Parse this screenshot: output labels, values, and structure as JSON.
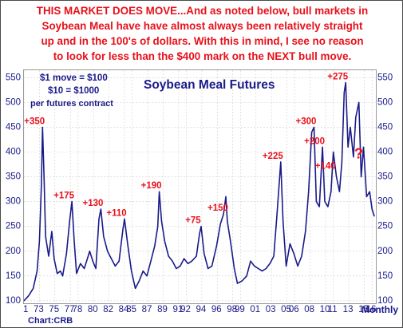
{
  "headline": {
    "line1": "THIS MARKET DOES MOVE...And as noted below, bull markets in",
    "line2": "Soybean Meal have have almost always been relatively straight",
    "line3": "up and in the 100's of dollars. With this in mind, I see no reason",
    "line4": "to look for less than the $400 mark on the NEXT bull move."
  },
  "legend_box": {
    "line1": "$1 move = $100",
    "line2": "$10 = $1000",
    "line3": "per futures contract"
  },
  "credit": "Chart:CRB",
  "x_unit": "Monthly",
  "colors": {
    "headline": "#e8101a",
    "series": "#1a1a8a",
    "annotation": "#e8101a",
    "axis_text": "#1a1a8a"
  },
  "chart_data": {
    "type": "line",
    "title": "Soybean Meal Futures",
    "xlabel": "Monthly",
    "ylabel": "",
    "xlim": [
      1971.0,
      2016.5
    ],
    "ylim": [
      95,
      565
    ],
    "y_ticks": [
      100,
      150,
      200,
      250,
      300,
      350,
      400,
      450,
      500,
      550
    ],
    "x_ticks": [
      {
        "label": "71",
        "x": 1971
      },
      {
        "label": "73",
        "x": 1973
      },
      {
        "label": "75",
        "x": 1975
      },
      {
        "label": "77",
        "x": 1977
      },
      {
        "label": "78",
        "x": 1978
      },
      {
        "label": "80",
        "x": 1980
      },
      {
        "label": "82",
        "x": 1982
      },
      {
        "label": "84",
        "x": 1984
      },
      {
        "label": "85",
        "x": 1985
      },
      {
        "label": "87",
        "x": 1987
      },
      {
        "label": "89",
        "x": 1989
      },
      {
        "label": "91",
        "x": 1991
      },
      {
        "label": "92",
        "x": 1992
      },
      {
        "label": "94",
        "x": 1994
      },
      {
        "label": "96",
        "x": 1996
      },
      {
        "label": "98",
        "x": 1998
      },
      {
        "label": "99",
        "x": 1999
      },
      {
        "label": "01",
        "x": 2001
      },
      {
        "label": "03",
        "x": 2003
      },
      {
        "label": "05",
        "x": 2005
      },
      {
        "label": "06",
        "x": 2006
      },
      {
        "label": "08",
        "x": 2008
      },
      {
        "label": "10",
        "x": 2010
      },
      {
        "label": "11",
        "x": 2011
      },
      {
        "label": "13",
        "x": 2013
      },
      {
        "label": "15",
        "x": 2015
      },
      {
        "label": "16",
        "x": 2016
      }
    ],
    "grid": true,
    "series": [
      {
        "values": [
          [
            1971.0,
            100
          ],
          [
            1971.6,
            110
          ],
          [
            1972.2,
            125
          ],
          [
            1972.7,
            160
          ],
          [
            1973.0,
            220
          ],
          [
            1973.25,
            330
          ],
          [
            1973.4,
            450
          ],
          [
            1973.6,
            350
          ],
          [
            1973.8,
            230
          ],
          [
            1974.2,
            190
          ],
          [
            1974.6,
            240
          ],
          [
            1974.9,
            185
          ],
          [
            1975.3,
            155
          ],
          [
            1975.7,
            160
          ],
          [
            1976.0,
            150
          ],
          [
            1976.5,
            195
          ],
          [
            1976.9,
            260
          ],
          [
            1977.2,
            300
          ],
          [
            1977.5,
            220
          ],
          [
            1977.8,
            155
          ],
          [
            1978.3,
            175
          ],
          [
            1978.8,
            165
          ],
          [
            1979.2,
            185
          ],
          [
            1979.5,
            200
          ],
          [
            1979.9,
            180
          ],
          [
            1980.3,
            165
          ],
          [
            1980.7,
            265
          ],
          [
            1980.95,
            285
          ],
          [
            1981.3,
            230
          ],
          [
            1981.8,
            200
          ],
          [
            1982.3,
            185
          ],
          [
            1982.8,
            170
          ],
          [
            1983.3,
            180
          ],
          [
            1983.8,
            245
          ],
          [
            1984.0,
            265
          ],
          [
            1984.4,
            215
          ],
          [
            1984.9,
            160
          ],
          [
            1985.4,
            125
          ],
          [
            1985.9,
            140
          ],
          [
            1986.4,
            160
          ],
          [
            1986.9,
            150
          ],
          [
            1987.4,
            180
          ],
          [
            1987.9,
            210
          ],
          [
            1988.3,
            250
          ],
          [
            1988.5,
            320
          ],
          [
            1988.8,
            260
          ],
          [
            1989.2,
            220
          ],
          [
            1989.7,
            190
          ],
          [
            1990.2,
            180
          ],
          [
            1990.7,
            165
          ],
          [
            1991.2,
            170
          ],
          [
            1991.7,
            185
          ],
          [
            1992.2,
            175
          ],
          [
            1992.7,
            180
          ],
          [
            1993.3,
            190
          ],
          [
            1993.7,
            235
          ],
          [
            1993.9,
            250
          ],
          [
            1994.3,
            195
          ],
          [
            1994.8,
            165
          ],
          [
            1995.3,
            170
          ],
          [
            1995.9,
            210
          ],
          [
            1996.4,
            255
          ],
          [
            1996.8,
            275
          ],
          [
            1997.1,
            310
          ],
          [
            1997.3,
            260
          ],
          [
            1997.7,
            220
          ],
          [
            1998.2,
            165
          ],
          [
            1998.6,
            135
          ],
          [
            1999.2,
            140
          ],
          [
            1999.8,
            150
          ],
          [
            2000.3,
            180
          ],
          [
            2000.8,
            170
          ],
          [
            2001.3,
            165
          ],
          [
            2001.8,
            160
          ],
          [
            2002.3,
            165
          ],
          [
            2002.8,
            175
          ],
          [
            2003.3,
            190
          ],
          [
            2003.7,
            270
          ],
          [
            2004.0,
            335
          ],
          [
            2004.2,
            380
          ],
          [
            2004.5,
            260
          ],
          [
            2004.9,
            170
          ],
          [
            2005.4,
            215
          ],
          [
            2005.9,
            195
          ],
          [
            2006.4,
            170
          ],
          [
            2006.9,
            190
          ],
          [
            2007.4,
            240
          ],
          [
            2007.8,
            320
          ],
          [
            2008.2,
            440
          ],
          [
            2008.5,
            450
          ],
          [
            2008.8,
            300
          ],
          [
            2009.2,
            290
          ],
          [
            2009.6,
            410
          ],
          [
            2009.9,
            300
          ],
          [
            2010.3,
            290
          ],
          [
            2010.7,
            320
          ],
          [
            2011.0,
            400
          ],
          [
            2011.4,
            350
          ],
          [
            2011.8,
            320
          ],
          [
            2012.1,
            380
          ],
          [
            2012.4,
            520
          ],
          [
            2012.6,
            540
          ],
          [
            2012.9,
            410
          ],
          [
            2013.2,
            450
          ],
          [
            2013.6,
            390
          ],
          [
            2013.9,
            470
          ],
          [
            2014.3,
            500
          ],
          [
            2014.6,
            350
          ],
          [
            2014.9,
            410
          ],
          [
            2015.3,
            310
          ],
          [
            2015.7,
            320
          ],
          [
            2016.0,
            285
          ],
          [
            2016.3,
            270
          ]
        ]
      }
    ],
    "annotations": [
      {
        "text": "+350",
        "x": 1973.4,
        "y": 450
      },
      {
        "text": "+175",
        "x": 1977.2,
        "y": 300
      },
      {
        "text": "+130",
        "x": 1980.95,
        "y": 285
      },
      {
        "text": "+110",
        "x": 1984.0,
        "y": 265
      },
      {
        "text": "+190",
        "x": 1988.5,
        "y": 320
      },
      {
        "text": "+75",
        "x": 1993.9,
        "y": 250
      },
      {
        "text": "+150",
        "x": 1997.1,
        "y": 275
      },
      {
        "text": "+225",
        "x": 2004.2,
        "y": 380
      },
      {
        "text": "+300",
        "x": 2008.5,
        "y": 450
      },
      {
        "text": "+200",
        "x": 2009.6,
        "y": 410
      },
      {
        "text": "+140",
        "x": 2011.0,
        "y": 360
      },
      {
        "text": "+275",
        "x": 2012.6,
        "y": 540
      },
      {
        "text": "?",
        "x": 2018.0,
        "y": 400
      }
    ]
  }
}
